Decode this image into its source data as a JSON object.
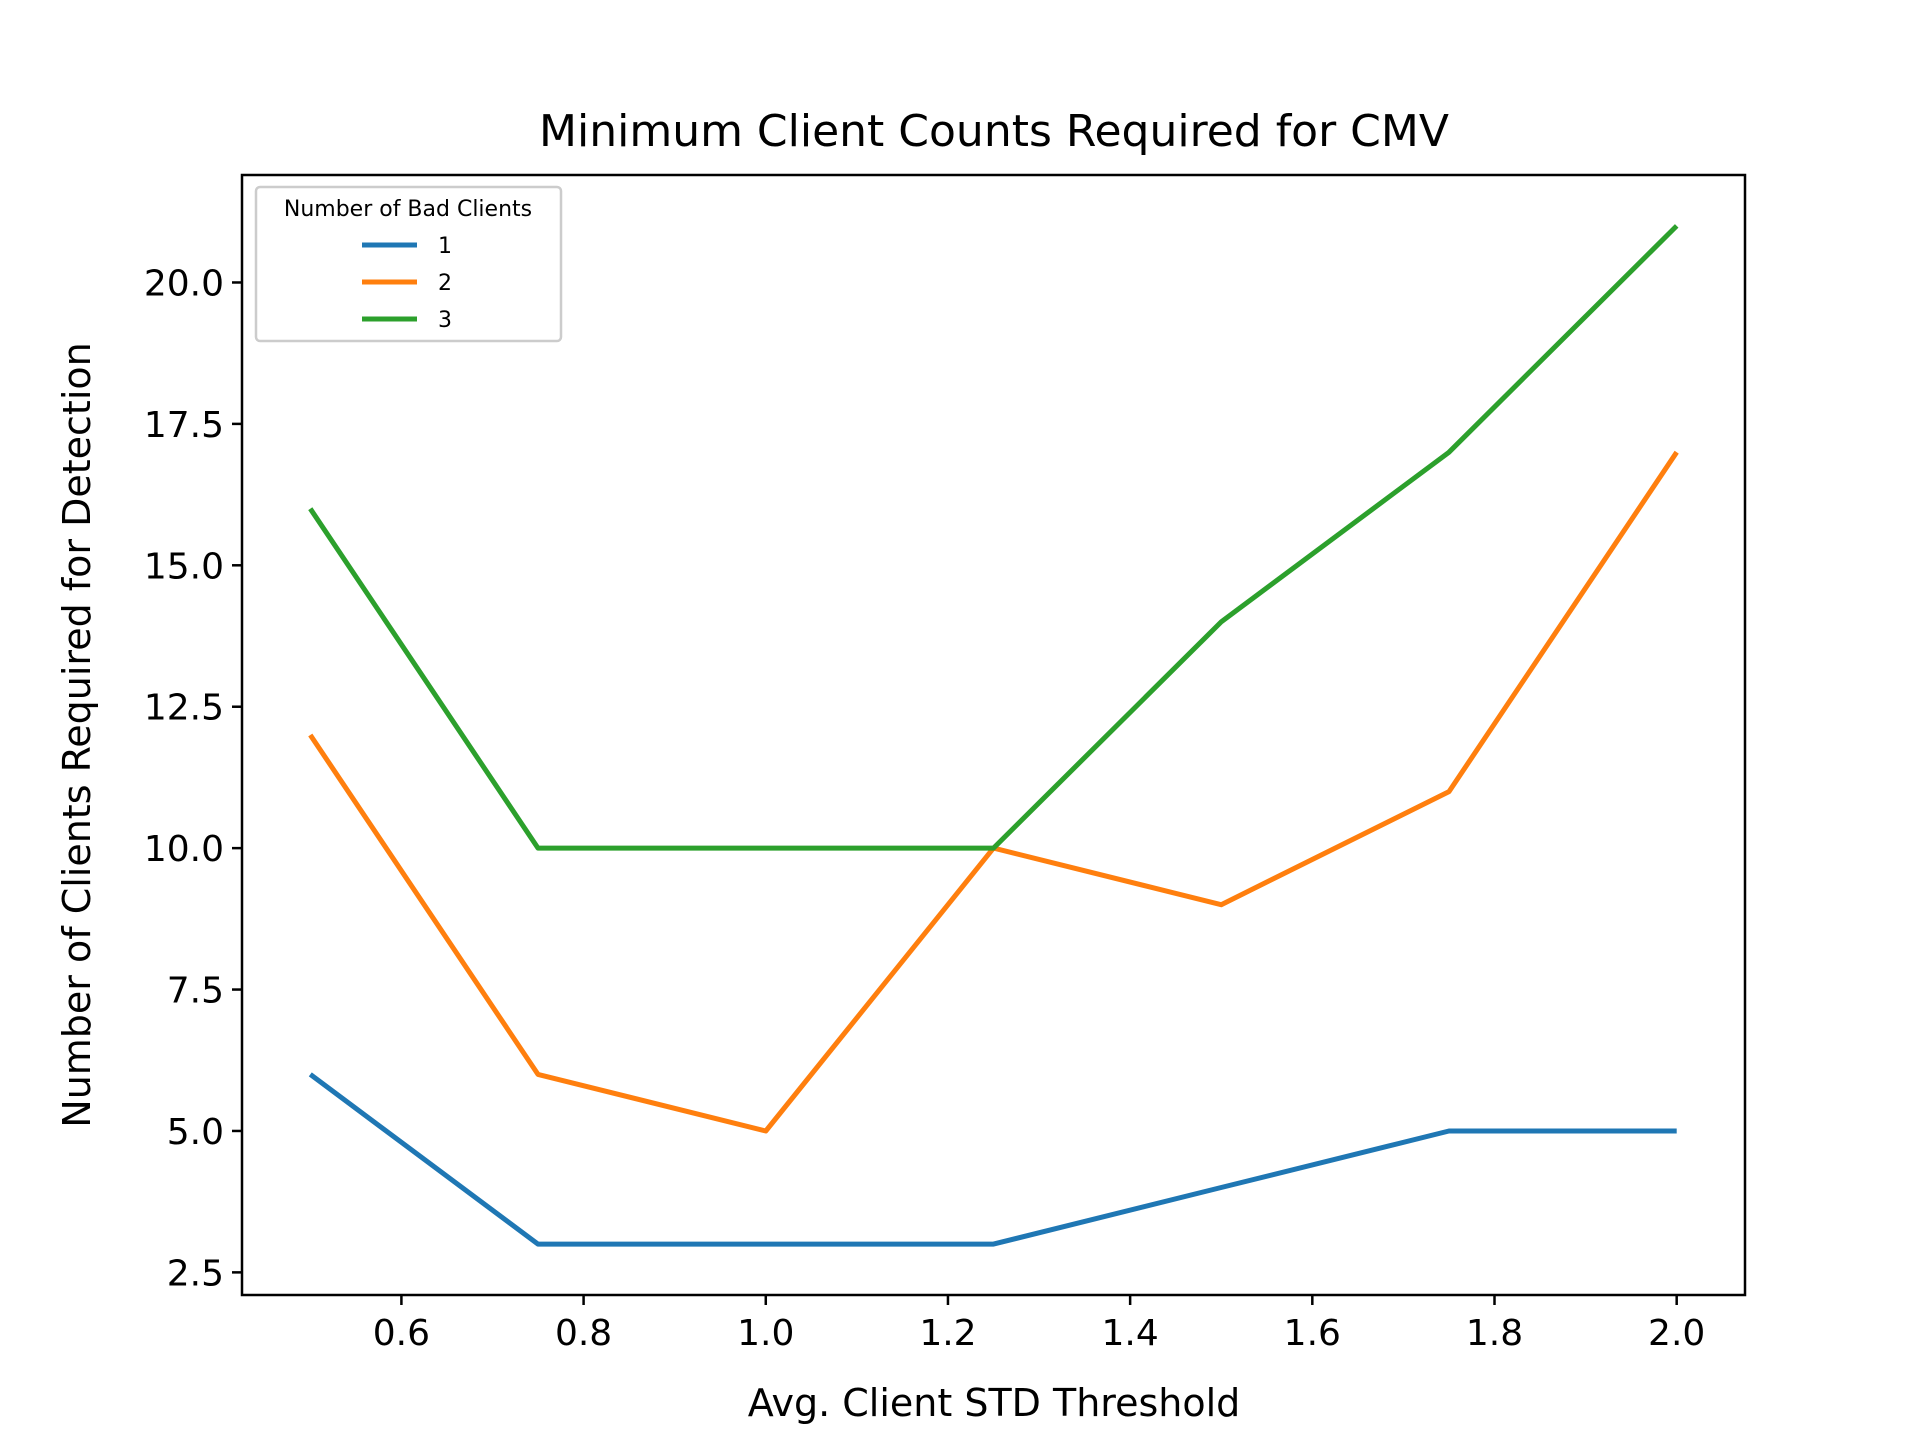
{
  "chart_data": {
    "type": "line",
    "title": "Minimum Client Counts Required for CMV",
    "xlabel": "Avg. Client STD Threshold",
    "ylabel": "Number of Clients Required for Detection",
    "x": [
      0.5,
      0.75,
      1.0,
      1.25,
      1.5,
      1.75,
      2.0
    ],
    "series": [
      {
        "name": "1",
        "color": "#1f77b4",
        "values": [
          6,
          3,
          3,
          3,
          4,
          5,
          5
        ]
      },
      {
        "name": "2",
        "color": "#ff7f0e",
        "values": [
          12,
          6,
          5,
          10,
          9,
          11,
          17
        ]
      },
      {
        "name": "3",
        "color": "#2ca02c",
        "values": [
          16,
          10,
          10,
          10,
          14,
          17,
          21
        ]
      }
    ],
    "xlim": [
      0.425,
      2.075
    ],
    "ylim": [
      2.1,
      21.9
    ],
    "xticks": [
      "0.6",
      "0.8",
      "1.0",
      "1.2",
      "1.4",
      "1.6",
      "1.8",
      "2.0"
    ],
    "yticks": [
      "2.5",
      "5.0",
      "7.5",
      "10.0",
      "12.5",
      "15.0",
      "17.5",
      "20.0"
    ],
    "legend": {
      "title": "Number of Bad Clients",
      "placement": "top-left"
    },
    "grid": false
  }
}
